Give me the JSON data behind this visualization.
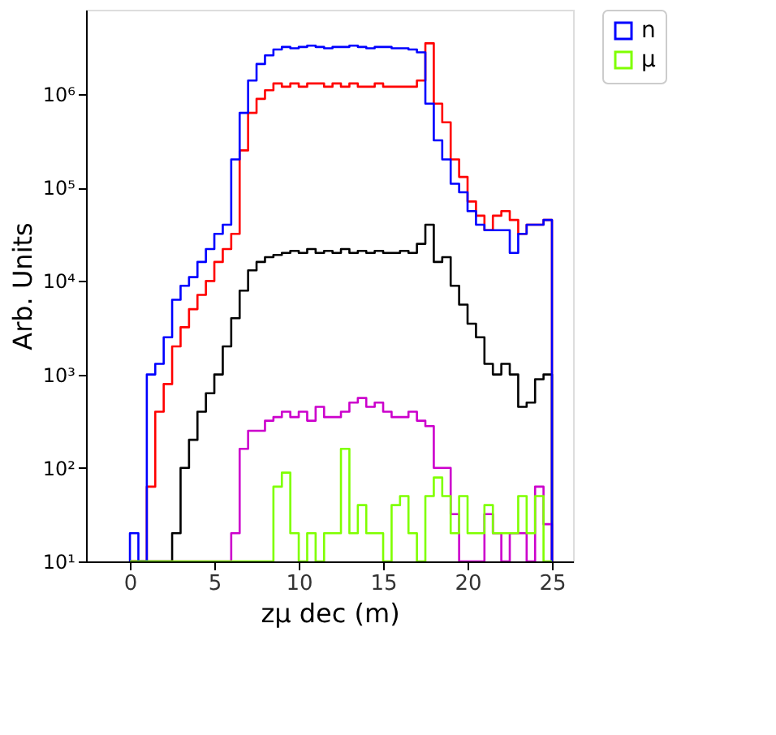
{
  "chart_data": {
    "type": "histogram",
    "xlabel": "zμ dec (m)",
    "ylabel": "Arb. Units",
    "bins": [
      0,
      0.5,
      1,
      1.5,
      2,
      2.5,
      3,
      3.5,
      4,
      4.5,
      5,
      5.5,
      6,
      6.5,
      7,
      7.5,
      8,
      8.5,
      9,
      9.5,
      10,
      10.5,
      11,
      11.5,
      12,
      12.5,
      13,
      13.5,
      14,
      14.5,
      15,
      15.5,
      16,
      16.5,
      17,
      17.5,
      18,
      18.5,
      19,
      19.5,
      20,
      20.5,
      21,
      21.5,
      22,
      22.5,
      23,
      23.5,
      24,
      24.5,
      25
    ],
    "series": [
      {
        "name": "n",
        "color": "#0000ff",
        "values": [
          20,
          null,
          1000,
          1300,
          2500,
          6300,
          8900,
          11000,
          16000,
          22000,
          32000,
          40000,
          200000,
          630000,
          1400000,
          2100000,
          2600000,
          3000000,
          3200000,
          3100000,
          3200000,
          3300000,
          3200000,
          3100000,
          3200000,
          3200000,
          3300000,
          3200000,
          3100000,
          3200000,
          3200000,
          3100000,
          3100000,
          3000000,
          2800000,
          790000,
          320000,
          200000,
          110000,
          89000,
          56000,
          40000,
          35000,
          35000,
          35000,
          20000,
          32000,
          40000,
          40000,
          45000
        ]
      },
      {
        "color": "#ff0000",
        "values": [
          null,
          null,
          63,
          400,
          790,
          2000,
          3200,
          5000,
          7100,
          10000,
          16000,
          22000,
          32000,
          250000,
          630000,
          890000,
          1100000,
          1300000,
          1200000,
          1300000,
          1200000,
          1300000,
          1300000,
          1200000,
          1300000,
          1200000,
          1300000,
          1200000,
          1200000,
          1300000,
          1200000,
          1200000,
          1200000,
          1200000,
          1400000,
          3500000,
          790000,
          500000,
          200000,
          130000,
          71000,
          50000,
          35000,
          50000,
          56000,
          45000,
          32000,
          40000,
          40000,
          45000
        ]
      },
      {
        "color": "#000000",
        "values": [
          null,
          null,
          null,
          null,
          null,
          20,
          100,
          200,
          400,
          630,
          1000,
          2000,
          4000,
          7900,
          13000,
          16000,
          18000,
          19000,
          20000,
          21000,
          20000,
          22000,
          20000,
          21000,
          20000,
          22000,
          20000,
          21000,
          20000,
          21000,
          20000,
          20000,
          21000,
          20000,
          25000,
          40000,
          16000,
          18000,
          8900,
          5600,
          3500,
          2500,
          1300,
          1000,
          1300,
          1000,
          450,
          500,
          890,
          1000
        ]
      },
      {
        "color": "#cc00cc",
        "values": [
          null,
          null,
          null,
          null,
          null,
          null,
          null,
          null,
          null,
          null,
          null,
          null,
          20,
          160,
          250,
          250,
          320,
          350,
          400,
          350,
          400,
          320,
          450,
          350,
          350,
          400,
          500,
          560,
          450,
          500,
          400,
          350,
          350,
          400,
          320,
          280,
          100,
          100,
          32,
          null,
          null,
          null,
          32,
          20,
          null,
          20,
          20,
          null,
          63,
          25
        ]
      },
      {
        "name": "μ",
        "color": "#7fff00",
        "values": [
          null,
          null,
          null,
          null,
          null,
          null,
          null,
          null,
          null,
          null,
          null,
          null,
          null,
          null,
          null,
          null,
          null,
          63,
          89,
          20,
          null,
          20,
          null,
          20,
          20,
          160,
          20,
          40,
          20,
          20,
          null,
          40,
          50,
          20,
          null,
          50,
          79,
          50,
          20,
          50,
          20,
          20,
          40,
          20,
          20,
          20,
          50,
          20,
          50,
          null
        ]
      }
    ],
    "xlim": [
      -2.6,
      26.25
    ],
    "xticks": [
      0,
      5,
      10,
      15,
      20,
      25
    ],
    "ylim": [
      10,
      8000000
    ],
    "log": true,
    "yticks": [
      {
        "value": 10,
        "label": "10¹"
      },
      {
        "value": 100,
        "label": "10²"
      },
      {
        "value": 1000,
        "label": "10³"
      },
      {
        "value": 10000,
        "label": "10⁴"
      },
      {
        "value": 100000,
        "label": "10⁵"
      },
      {
        "value": 1000000,
        "label": "10⁶"
      }
    ],
    "grid": false,
    "legend": "top right"
  }
}
